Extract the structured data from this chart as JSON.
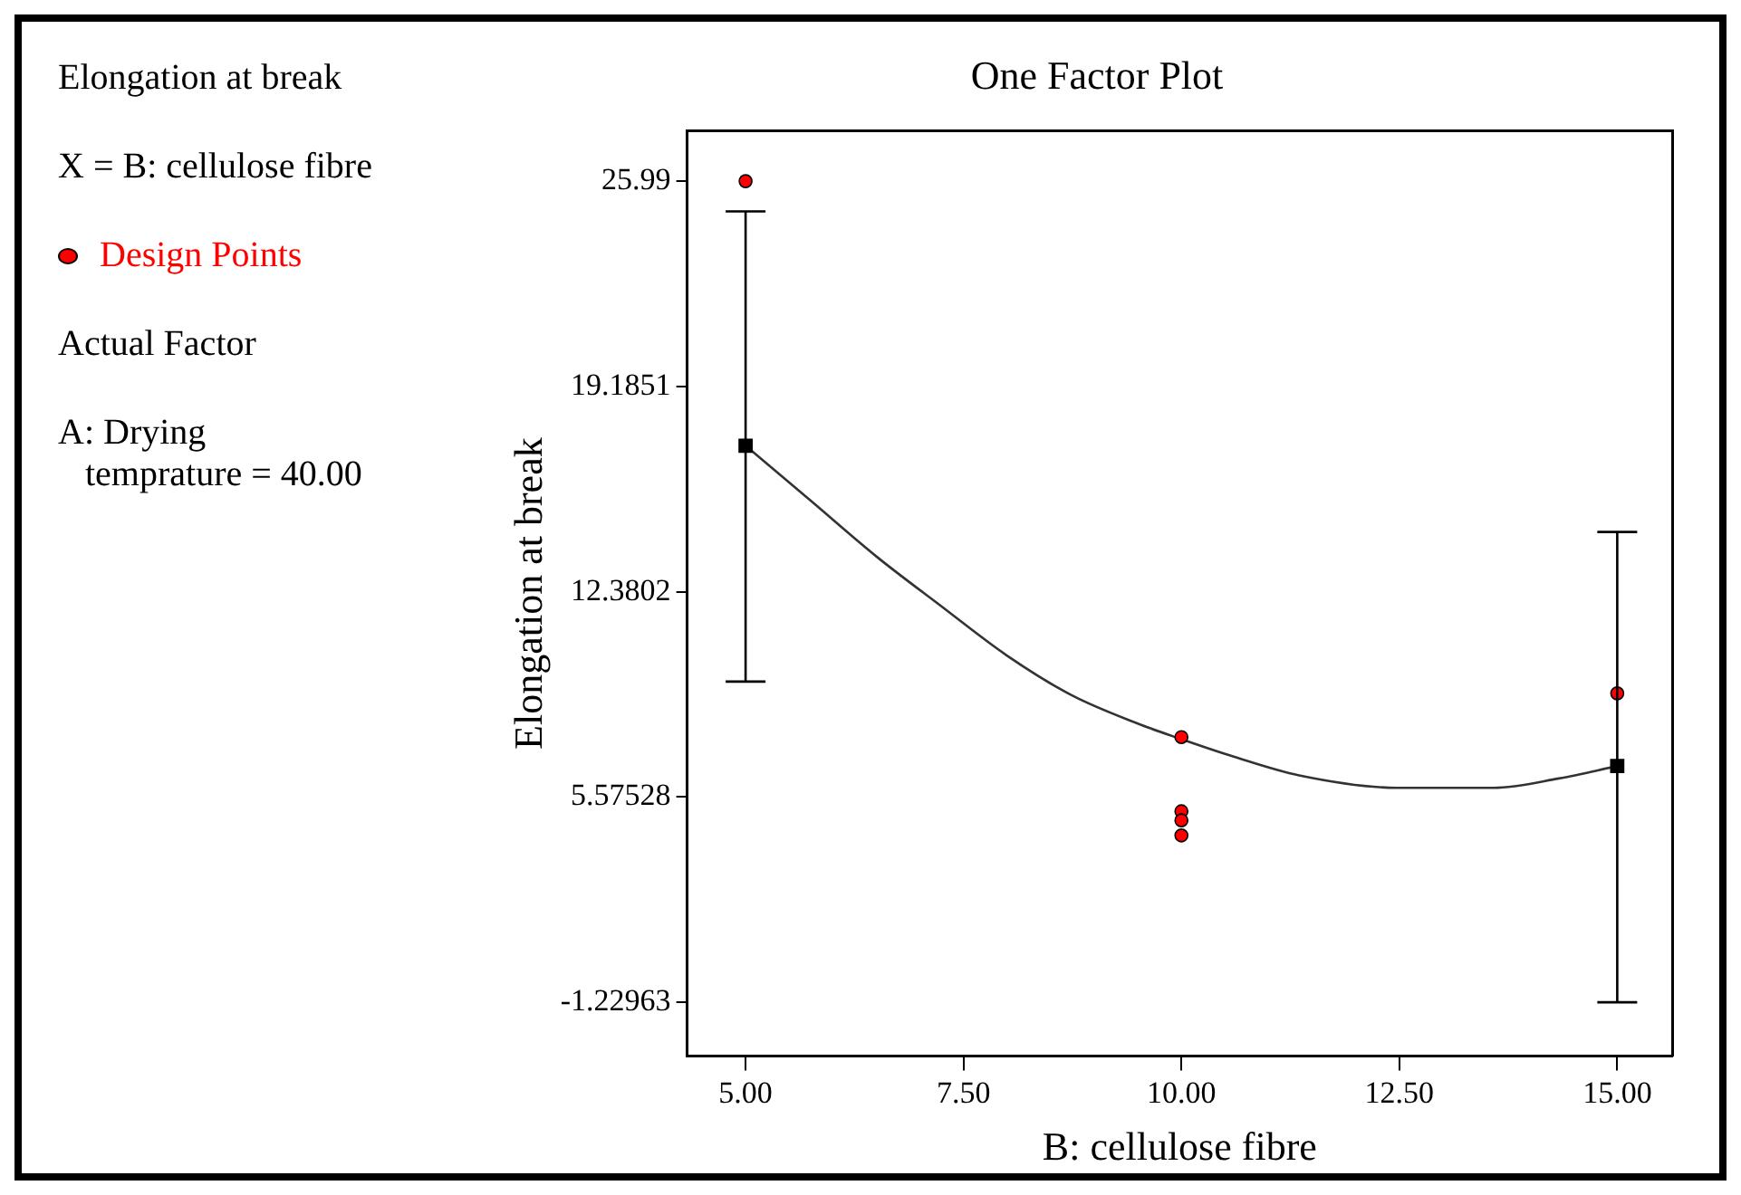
{
  "chart_data": {
    "type": "scatter",
    "title": "One Factor Plot",
    "xlabel": "B: cellulose fibre",
    "ylabel": "Elongation at break",
    "annotations": [
      "Elongation at break",
      "X = B: cellulose fibre",
      "Actual Factor",
      "A: Drying\n   temprature = 40.00"
    ],
    "xlim": [
      4.33,
      15.63
    ],
    "ylim": [
      -3.01,
      27.65
    ],
    "xticks": [
      {
        "value": 5,
        "label": "5.00"
      },
      {
        "value": 7.5,
        "label": "7.50"
      },
      {
        "value": 10,
        "label": "10.00"
      },
      {
        "value": 12.5,
        "label": "12.50"
      },
      {
        "value": 15,
        "label": "15.00"
      }
    ],
    "yticks": [
      -1.22963,
      5.57528,
      12.3802,
      19.1851,
      25.99
    ],
    "grid": false,
    "legend": "left",
    "series": [
      {
        "name": "Design Points",
        "color": "#ff0000",
        "marker": "circle",
        "x": [
          5,
          10,
          10,
          10,
          10,
          15
        ],
        "values": [
          25.99,
          7.56,
          5.1,
          4.8,
          4.3,
          9.01
        ]
      },
      {
        "color": "#000000",
        "marker": "square",
        "x": [
          5,
          15
        ],
        "values": [
          17.22,
          6.6
        ],
        "errors": [
          [
            9.4,
            24.99
          ],
          [
            -1.23,
            14.36
          ]
        ]
      },
      {
        "type": "line",
        "color": "#333333",
        "marker": "none",
        "x": [
          5,
          5.75,
          6.5,
          7.24,
          7.99,
          8.74,
          9.48,
          9.97,
          10.6,
          11.35,
          12.47,
          13.58,
          14.33,
          15
        ],
        "values": [
          17.22,
          15.39,
          13.55,
          11.91,
          10.28,
          8.95,
          8.03,
          7.52,
          6.91,
          6.29,
          5.88,
          5.88,
          6.19,
          6.6
        ]
      }
    ]
  }
}
